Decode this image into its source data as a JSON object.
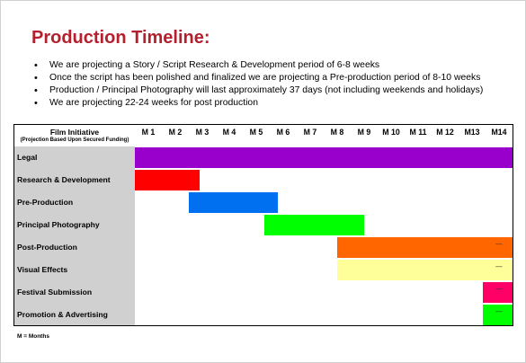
{
  "title": "Production Timeline:",
  "bullets": [
    "We are projecting a Story / Script Research & Development period of 6-8 weeks",
    "Once the script has been polished and finalized we are projecting a Pre-production period of 8-10 weeks",
    "Production / Principal Photography will last approximately 37 days (not including weekends and holidays)",
    "We are projecting 22-24 weeks for post production"
  ],
  "bullet_glyph": "•",
  "chart": {
    "header_label": "Film Initiative",
    "header_sublabel": "(Projection Based Upon Secured Funding)",
    "months": [
      "M 1",
      "M 2",
      "M 3",
      "M 4",
      "M 5",
      "M 6",
      "M 7",
      "M 8",
      "M 9",
      "M 10",
      "M 11",
      "M 12",
      "M13",
      "M14"
    ],
    "rows": [
      {
        "label": "Legal",
        "color": "#9900cc",
        "start_month": 1,
        "end_month": 14,
        "continues": false
      },
      {
        "label": "Research & Development",
        "color": "#ff0000",
        "start_month": 1,
        "end_month": 2.4,
        "continues": false
      },
      {
        "label": "Pre-Production",
        "color": "#0070f0",
        "start_month": 3,
        "end_month": 5.3,
        "continues": false
      },
      {
        "label": "Principal Photography",
        "color": "#00ff00",
        "start_month": 5.8,
        "end_month": 8.5,
        "continues": false
      },
      {
        "label": "Post-Production",
        "color": "#ff6600",
        "start_month": 8.5,
        "end_month": 14,
        "continues": true
      },
      {
        "label": "Visual Effects",
        "color": "#ffff99",
        "start_month": 8.5,
        "end_month": 14,
        "continues": true
      },
      {
        "label": "Festival Submission",
        "color": "#ff0066",
        "start_month": 13.9,
        "end_month": 14,
        "continues": true
      },
      {
        "label": "Promotion & Advertising",
        "color": "#00ff00",
        "start_month": 13.9,
        "end_month": 14,
        "continues": true
      }
    ],
    "continuation_mark": "----"
  },
  "footnote": "M = Months"
}
